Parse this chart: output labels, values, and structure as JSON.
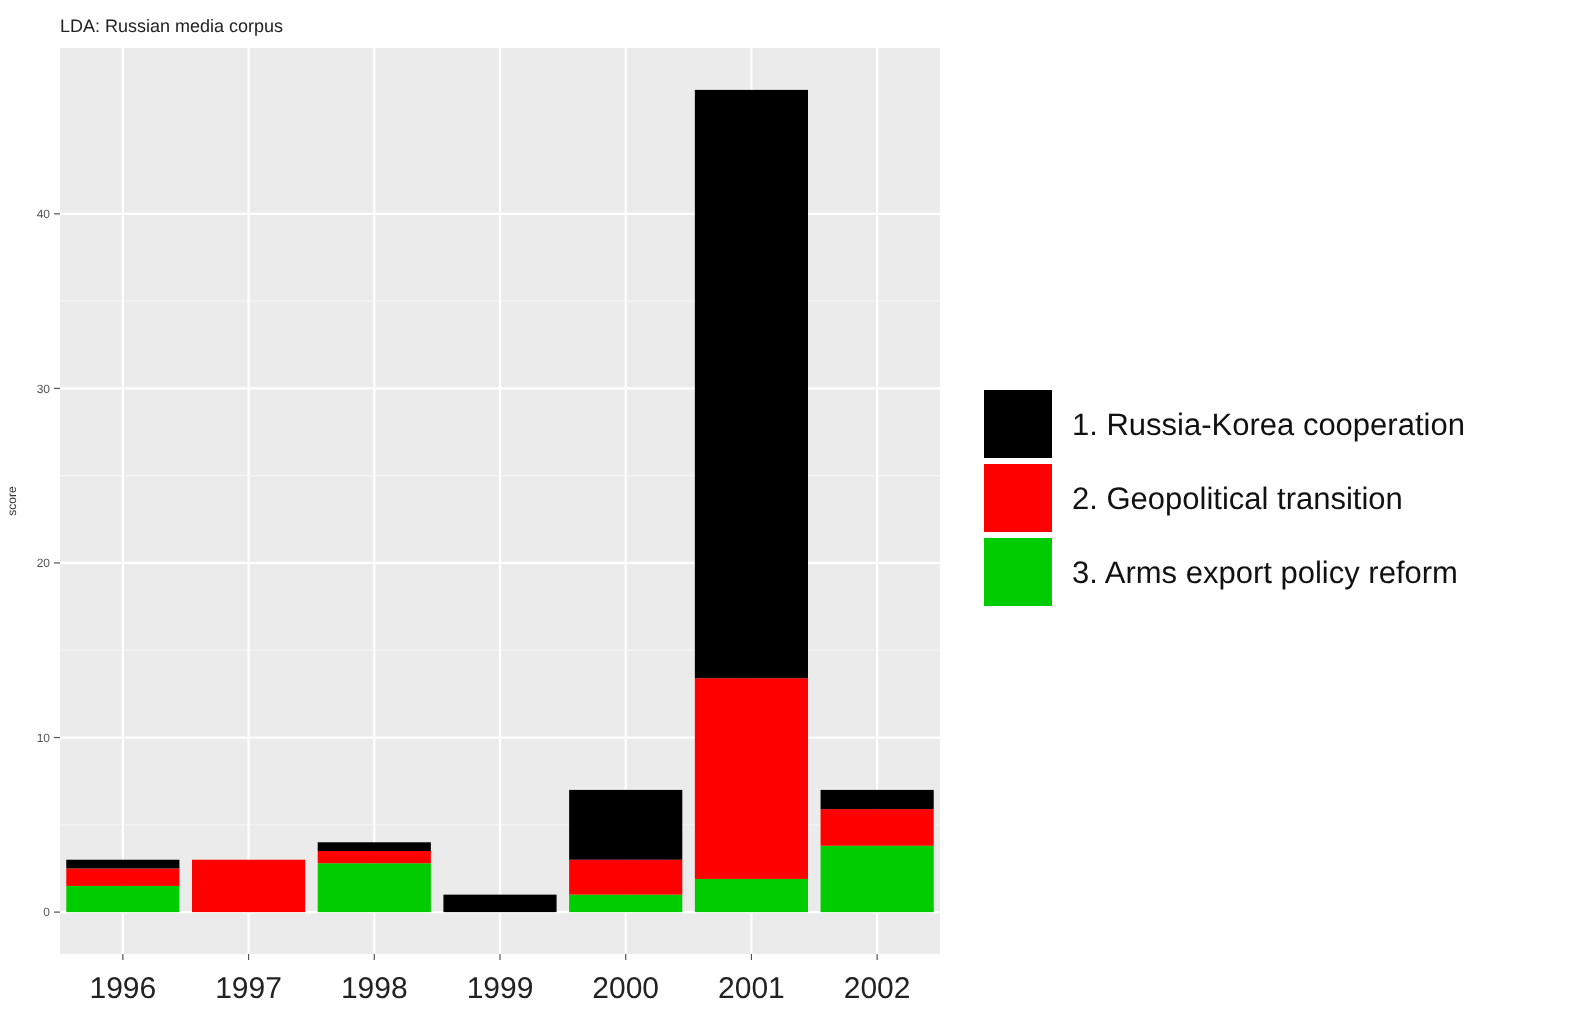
{
  "chart_data": {
    "type": "bar",
    "title": "LDA: Russian media corpus",
    "ylabel": "score",
    "categories": [
      "1996",
      "1997",
      "1998",
      "1999",
      "2000",
      "2001",
      "2002"
    ],
    "stacked": true,
    "series": [
      {
        "name": "3. Arms export policy reform",
        "color": "#00cc00",
        "values": [
          1.5,
          0,
          2.8,
          0,
          1.0,
          1.9,
          3.8
        ]
      },
      {
        "name": "2. Geopolitical transition",
        "color": "#ff0000",
        "values": [
          1.0,
          3.0,
          0.7,
          0,
          2.0,
          11.5,
          2.1
        ]
      },
      {
        "name": "1. Russia-Korea cooperation",
        "color": "#000000",
        "values": [
          0.5,
          0,
          0.5,
          1.0,
          4.0,
          33.7,
          1.1
        ]
      }
    ],
    "ylim": [
      -2.4,
      49.5
    ],
    "yticks": [
      0,
      10,
      20,
      30,
      40
    ],
    "grid": true,
    "legend": "right"
  }
}
